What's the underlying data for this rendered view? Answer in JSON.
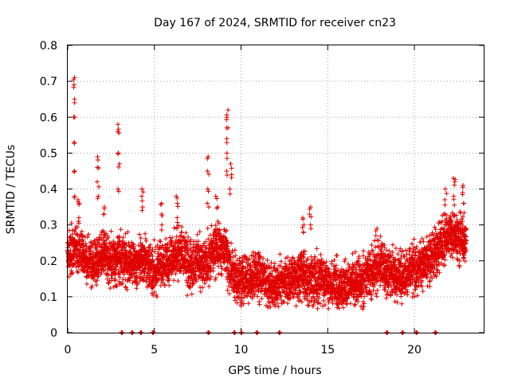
{
  "chart_data": {
    "type": "scatter",
    "title": "Day 167 of 2024, SRMTID for receiver cn23",
    "xlabel": "GPS time / hours",
    "ylabel": "SRMTID / TECUs",
    "xlim": [
      0,
      24
    ],
    "ylim": [
      0,
      0.8
    ],
    "x_ticks": [
      0,
      5,
      10,
      15,
      20
    ],
    "x_tick_labels": [
      "0",
      "5",
      "10",
      "15",
      "20"
    ],
    "y_ticks": [
      0,
      0.1,
      0.2,
      0.3,
      0.4,
      0.5,
      0.6,
      0.7,
      0.8
    ],
    "y_tick_labels": [
      "0",
      "0.1",
      "0.2",
      "0.3",
      "0.4",
      "0.5",
      "0.6",
      "0.7",
      "0.8"
    ],
    "grid": true,
    "marker": "+",
    "color": "#e00000",
    "series": [
      {
        "name": "SRMTID",
        "trend": [
          [
            0.0,
            0.22
          ],
          [
            0.5,
            0.24
          ],
          [
            1.0,
            0.2
          ],
          [
            1.5,
            0.19
          ],
          [
            2.0,
            0.22
          ],
          [
            2.5,
            0.2
          ],
          [
            3.0,
            0.21
          ],
          [
            3.5,
            0.2
          ],
          [
            4.0,
            0.19
          ],
          [
            4.5,
            0.2
          ],
          [
            5.0,
            0.17
          ],
          [
            5.5,
            0.18
          ],
          [
            6.0,
            0.2
          ],
          [
            6.5,
            0.23
          ],
          [
            7.0,
            0.18
          ],
          [
            7.5,
            0.2
          ],
          [
            8.0,
            0.19
          ],
          [
            8.5,
            0.23
          ],
          [
            9.0,
            0.24
          ],
          [
            9.5,
            0.17
          ],
          [
            10.0,
            0.14
          ],
          [
            10.5,
            0.15
          ],
          [
            11.0,
            0.16
          ],
          [
            11.5,
            0.14
          ],
          [
            12.0,
            0.13
          ],
          [
            12.5,
            0.14
          ],
          [
            13.0,
            0.15
          ],
          [
            13.5,
            0.16
          ],
          [
            14.0,
            0.15
          ],
          [
            14.5,
            0.14
          ],
          [
            15.0,
            0.14
          ],
          [
            15.5,
            0.13
          ],
          [
            16.0,
            0.13
          ],
          [
            16.5,
            0.14
          ],
          [
            17.0,
            0.15
          ],
          [
            17.5,
            0.17
          ],
          [
            18.0,
            0.19
          ],
          [
            18.5,
            0.17
          ],
          [
            19.0,
            0.16
          ],
          [
            19.5,
            0.16
          ],
          [
            20.0,
            0.18
          ],
          [
            20.5,
            0.19
          ],
          [
            21.0,
            0.21
          ],
          [
            21.5,
            0.24
          ],
          [
            22.0,
            0.27
          ],
          [
            22.5,
            0.27
          ],
          [
            23.0,
            0.25
          ]
        ],
        "spikes": [
          {
            "x": 0.35,
            "values": [
              0.38,
              0.45,
              0.53,
              0.6,
              0.65,
              0.69,
              0.71
            ]
          },
          {
            "x": 0.6,
            "values": [
              0.32,
              0.36,
              0.37
            ]
          },
          {
            "x": 1.75,
            "values": [
              0.38,
              0.42,
              0.46,
              0.49
            ]
          },
          {
            "x": 2.1,
            "values": [
              0.28,
              0.33,
              0.35
            ]
          },
          {
            "x": 2.95,
            "values": [
              0.4,
              0.47,
              0.5,
              0.56,
              0.58
            ]
          },
          {
            "x": 4.3,
            "values": [
              0.35,
              0.38,
              0.4
            ]
          },
          {
            "x": 5.4,
            "values": [
              0.3,
              0.33,
              0.36
            ]
          },
          {
            "x": 6.3,
            "values": [
              0.32,
              0.36,
              0.38
            ]
          },
          {
            "x": 8.1,
            "values": [
              0.36,
              0.4,
              0.45,
              0.49
            ]
          },
          {
            "x": 8.6,
            "values": [
              0.31,
              0.35,
              0.38
            ]
          },
          {
            "x": 9.2,
            "values": [
              0.45,
              0.5,
              0.54,
              0.57,
              0.6,
              0.62
            ]
          },
          {
            "x": 9.4,
            "values": [
              0.4,
              0.44,
              0.47
            ]
          },
          {
            "x": 13.6,
            "values": [
              0.28,
              0.3,
              0.32
            ]
          },
          {
            "x": 14.0,
            "values": [
              0.3,
              0.33,
              0.35
            ]
          },
          {
            "x": 17.8,
            "values": [
              0.27,
              0.29
            ]
          },
          {
            "x": 21.8,
            "values": [
              0.33,
              0.37,
              0.4
            ]
          },
          {
            "x": 22.3,
            "values": [
              0.38,
              0.42,
              0.43
            ]
          },
          {
            "x": 22.8,
            "values": [
              0.36,
              0.39,
              0.41
            ]
          }
        ],
        "zero_points_x": [
          3.1,
          3.7,
          4.2,
          4.9,
          8.1,
          9.6,
          10.0,
          10.9,
          12.2,
          18.4,
          19.3,
          20.1,
          21.2
        ]
      }
    ]
  }
}
